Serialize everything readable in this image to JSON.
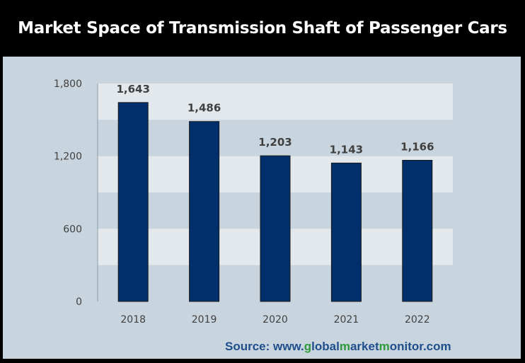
{
  "header": {
    "title": "Market Space of Transmission Shaft of Passenger Cars"
  },
  "footer": {
    "source_prefix": "Source: www.",
    "source_parts": [
      {
        "text": "g",
        "highlight": true
      },
      {
        "text": "lobal",
        "highlight": false
      },
      {
        "text": "m",
        "highlight": true
      },
      {
        "text": "arket",
        "highlight": false
      },
      {
        "text": "m",
        "highlight": true
      },
      {
        "text": "onitor.com",
        "highlight": false
      }
    ]
  },
  "colors": {
    "bar": "#002f6c",
    "band_light": "#e2e8ec",
    "band_dark": "#c9d5de",
    "panel": "#c9d5de",
    "source_text": "#1f4e8c",
    "source_highlight": "#2e9a3a"
  },
  "chart_data": {
    "type": "bar",
    "categories": [
      "2018",
      "2019",
      "2020",
      "2021",
      "2022"
    ],
    "values": [
      1643,
      1486,
      1203,
      1143,
      1166
    ],
    "data_labels": [
      "1,643",
      "1,486",
      "1,203",
      "1,143",
      "1,166"
    ],
    "title": "Market Space of Transmission Shaft of Passenger Cars",
    "xlabel": "",
    "ylabel": "",
    "ylim": [
      0,
      1800
    ],
    "yticks": [
      0,
      600,
      1200,
      1800
    ],
    "ytick_labels": [
      "0",
      "600",
      "1,200",
      "1,800"
    ],
    "grid": "horizontal bands",
    "legend": "none"
  }
}
